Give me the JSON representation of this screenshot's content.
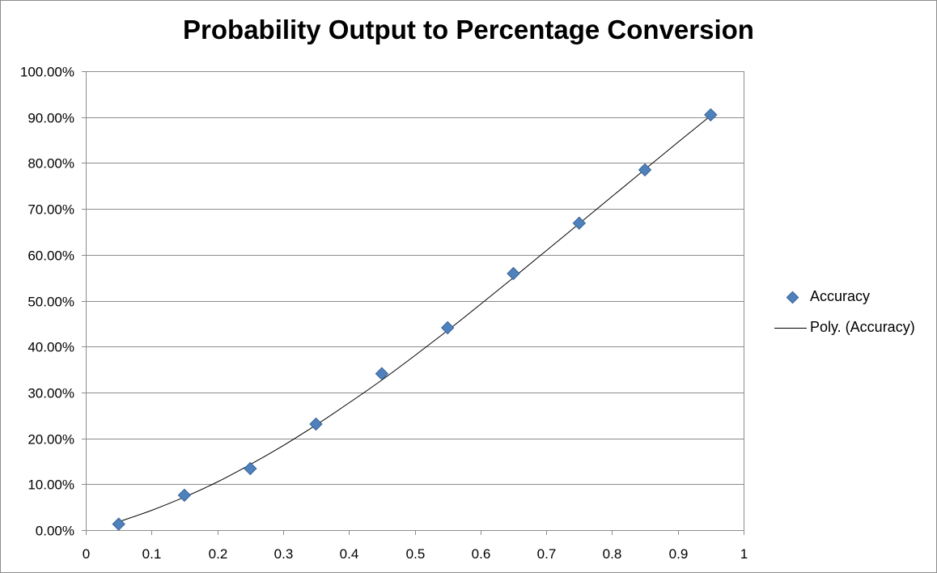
{
  "chart_data": {
    "type": "scatter",
    "title": "Probability Output to Percentage Conversion",
    "xlabel": "",
    "ylabel": "",
    "xlim": [
      0,
      1
    ],
    "ylim": [
      0,
      1
    ],
    "x_ticks": [
      "0",
      "0.1",
      "0.2",
      "0.3",
      "0.4",
      "0.5",
      "0.6",
      "0.7",
      "0.8",
      "0.9",
      "1"
    ],
    "y_ticks": [
      "0.00%",
      "10.00%",
      "20.00%",
      "30.00%",
      "40.00%",
      "50.00%",
      "60.00%",
      "70.00%",
      "80.00%",
      "90.00%",
      "100.00%"
    ],
    "grid": "horizontal",
    "legend_position": "right",
    "series": [
      {
        "name": "Accuracy",
        "type": "scatter",
        "color": "#4f81bd",
        "marker": "diamond",
        "x": [
          0.05,
          0.15,
          0.25,
          0.35,
          0.45,
          0.55,
          0.65,
          0.75,
          0.85,
          0.95
        ],
        "y": [
          0.013,
          0.076,
          0.134,
          0.231,
          0.341,
          0.441,
          0.559,
          0.669,
          0.785,
          0.905
        ]
      },
      {
        "name": "Poly. (Accuracy)",
        "type": "line",
        "color": "#000000",
        "x": [
          0.05,
          0.1,
          0.15,
          0.2,
          0.25,
          0.3,
          0.35,
          0.4,
          0.45,
          0.5,
          0.55,
          0.6,
          0.65,
          0.7,
          0.75,
          0.8,
          0.85,
          0.9,
          0.95
        ],
        "y": [
          0.018,
          0.043,
          0.072,
          0.105,
          0.143,
          0.184,
          0.229,
          0.277,
          0.327,
          0.38,
          0.435,
          0.492,
          0.55,
          0.609,
          0.668,
          0.727,
          0.786,
          0.845,
          0.903
        ]
      }
    ]
  }
}
